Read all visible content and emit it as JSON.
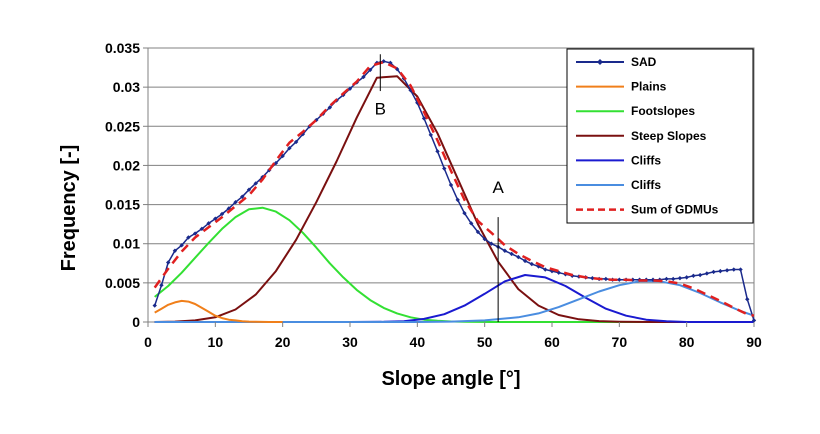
{
  "chart_data": {
    "type": "line",
    "xlabel": "Slope angle [°]",
    "ylabel": "Frequency [-]",
    "xlim": [
      0,
      90
    ],
    "ylim": [
      0,
      0.035
    ],
    "xticks": [
      "0",
      "10",
      "20",
      "30",
      "40",
      "50",
      "60",
      "70",
      "80",
      "90"
    ],
    "yticks": [
      "0",
      "0.005",
      "0.01",
      "0.015",
      "0.02",
      "0.025",
      "0.03",
      "0.035"
    ],
    "grid": "horizontal",
    "legend_position": "top-right",
    "series": [
      {
        "name": "SAD",
        "color": "#1a2a8c",
        "style": "line-with-diamond-markers",
        "x": [
          1,
          2,
          3,
          4,
          5,
          6,
          7,
          8,
          9,
          10,
          11,
          12,
          13,
          14,
          15,
          16,
          17,
          18,
          19,
          20,
          21,
          22,
          23,
          24,
          25,
          26,
          27,
          28,
          29,
          30,
          31,
          32,
          33,
          34,
          35,
          36,
          37,
          38,
          39,
          40,
          41,
          42,
          43,
          44,
          45,
          46,
          47,
          48,
          49,
          50,
          51,
          52,
          53,
          54,
          55,
          56,
          57,
          58,
          59,
          60,
          61,
          62,
          63,
          64,
          65,
          66,
          67,
          68,
          69,
          70,
          71,
          72,
          73,
          74,
          75,
          76,
          77,
          78,
          79,
          80,
          81,
          82,
          83,
          84,
          85,
          86,
          87,
          88,
          89,
          90
        ],
        "y": [
          0.0021,
          0.0047,
          0.0076,
          0.0091,
          0.0098,
          0.0108,
          0.0113,
          0.0119,
          0.0126,
          0.0132,
          0.0138,
          0.0145,
          0.0153,
          0.016,
          0.0169,
          0.0177,
          0.0185,
          0.0194,
          0.0203,
          0.0212,
          0.0222,
          0.023,
          0.024,
          0.025,
          0.0258,
          0.0266,
          0.0274,
          0.0283,
          0.029,
          0.0298,
          0.0306,
          0.0313,
          0.0322,
          0.0331,
          0.0333,
          0.0331,
          0.0323,
          0.0311,
          0.0296,
          0.028,
          0.026,
          0.0239,
          0.0218,
          0.0196,
          0.0175,
          0.0156,
          0.0139,
          0.0126,
          0.0115,
          0.0106,
          0.01,
          0.0096,
          0.0091,
          0.0087,
          0.0083,
          0.0078,
          0.0074,
          0.0071,
          0.0067,
          0.0065,
          0.0063,
          0.0061,
          0.0059,
          0.0058,
          0.0057,
          0.0056,
          0.0055,
          0.0055,
          0.0054,
          0.0054,
          0.0054,
          0.0054,
          0.0054,
          0.0054,
          0.0054,
          0.0054,
          0.0055,
          0.0055,
          0.0056,
          0.0057,
          0.0059,
          0.006,
          0.0062,
          0.0064,
          0.0065,
          0.0066,
          0.0067,
          0.0067,
          0.0029,
          0.0002
        ]
      },
      {
        "name": "Plains",
        "color": "#f07f1a",
        "style": "line",
        "x": [
          1,
          2,
          3,
          4,
          5,
          6,
          7,
          8,
          9,
          10,
          11,
          12,
          13,
          14,
          15,
          16,
          17,
          18,
          19,
          20
        ],
        "y": [
          0.0012,
          0.0017,
          0.0022,
          0.0025,
          0.0027,
          0.0026,
          0.0023,
          0.0018,
          0.0013,
          0.0008,
          0.0005,
          0.0003,
          0.0002,
          0.0001,
          5e-05,
          2e-05,
          1e-05,
          0,
          0,
          0
        ]
      },
      {
        "name": "Footslopes",
        "color": "#33e033",
        "style": "line",
        "x": [
          1,
          3,
          5,
          7,
          9,
          11,
          13,
          15,
          17,
          19,
          21,
          23,
          25,
          27,
          29,
          31,
          33,
          35,
          37,
          39,
          41,
          43,
          45,
          47,
          49,
          51,
          53,
          55,
          60,
          70,
          80,
          90
        ],
        "y": [
          0.0032,
          0.0046,
          0.0063,
          0.0082,
          0.0101,
          0.0119,
          0.0134,
          0.0144,
          0.0146,
          0.0141,
          0.013,
          0.0114,
          0.0095,
          0.0075,
          0.0057,
          0.0041,
          0.0028,
          0.0018,
          0.0011,
          0.0006,
          0.0003,
          0.00015,
          7e-05,
          3e-05,
          1e-05,
          0,
          0,
          0,
          0,
          0,
          0,
          0
        ]
      },
      {
        "name": "Steep Slopes",
        "color": "#7a1010",
        "style": "line",
        "x": [
          1,
          4,
          7,
          10,
          13,
          16,
          19,
          22,
          25,
          28,
          31,
          34,
          37,
          40,
          43,
          46,
          49,
          52,
          55,
          58,
          61,
          64,
          67,
          70,
          75,
          80,
          90
        ],
        "y": [
          0,
          5e-05,
          0.0002,
          0.0006,
          0.0016,
          0.0035,
          0.0065,
          0.0105,
          0.0153,
          0.0205,
          0.0261,
          0.0312,
          0.0314,
          0.0288,
          0.0241,
          0.0183,
          0.0125,
          0.0077,
          0.0042,
          0.0021,
          0.0009,
          0.00035,
          0.00012,
          4e-05,
          0,
          0,
          0
        ]
      },
      {
        "name": "Cliffs",
        "color": "#1a1ad0",
        "style": "line",
        "x": [
          1,
          30,
          35,
          38,
          41,
          44,
          47,
          50,
          53,
          56,
          59,
          62,
          65,
          68,
          71,
          74,
          77,
          80,
          90
        ],
        "y": [
          0,
          0,
          3e-05,
          0.0001,
          0.0004,
          0.001,
          0.0021,
          0.0036,
          0.0052,
          0.006,
          0.0057,
          0.0046,
          0.0031,
          0.0017,
          0.0008,
          0.0003,
          0.0001,
          0,
          0
        ]
      },
      {
        "name": "Cliffs",
        "color": "#4a8de0",
        "style": "line",
        "x": [
          1,
          40,
          45,
          50,
          55,
          58,
          61,
          64,
          67,
          70,
          73,
          76,
          79,
          82,
          85,
          88,
          90
        ],
        "y": [
          0,
          0,
          5e-05,
          0.0002,
          0.0006,
          0.0011,
          0.0019,
          0.0029,
          0.0039,
          0.0047,
          0.0052,
          0.0052,
          0.0047,
          0.0037,
          0.0025,
          0.0014,
          0.0008
        ]
      },
      {
        "name": "Sum of GDMUs",
        "color": "#e02020",
        "style": "dashed",
        "x": [
          1,
          3,
          5,
          7,
          9,
          11,
          13,
          15,
          17,
          19,
          21,
          23,
          25,
          27,
          29,
          31,
          33,
          35,
          37,
          39,
          41,
          43,
          45,
          47,
          49,
          51,
          53,
          55,
          57,
          59,
          61,
          63,
          65,
          67,
          69,
          71,
          73,
          75,
          77,
          79,
          81,
          83,
          85,
          87,
          89,
          90
        ],
        "y": [
          0.0044,
          0.0068,
          0.009,
          0.0108,
          0.0121,
          0.0134,
          0.0148,
          0.0162,
          0.0182,
          0.0206,
          0.0229,
          0.0243,
          0.0258,
          0.0276,
          0.0292,
          0.0307,
          0.0327,
          0.0332,
          0.0324,
          0.0302,
          0.0268,
          0.0232,
          0.0193,
          0.0156,
          0.0129,
          0.0114,
          0.0098,
          0.0087,
          0.0078,
          0.007,
          0.0065,
          0.006,
          0.0057,
          0.0055,
          0.0054,
          0.0054,
          0.0053,
          0.0053,
          0.0052,
          0.0049,
          0.0043,
          0.0035,
          0.0027,
          0.0018,
          0.001,
          0.0008
        ]
      }
    ],
    "annotations": [
      {
        "text": "A",
        "x": 52,
        "y_top": 0.0134,
        "y_bottom": 0,
        "label_y": 0.0165
      },
      {
        "text": "B",
        "x": 34.5,
        "y_top": 0.0342,
        "y_bottom": 0.0295,
        "label_y": 0.0265
      }
    ]
  }
}
